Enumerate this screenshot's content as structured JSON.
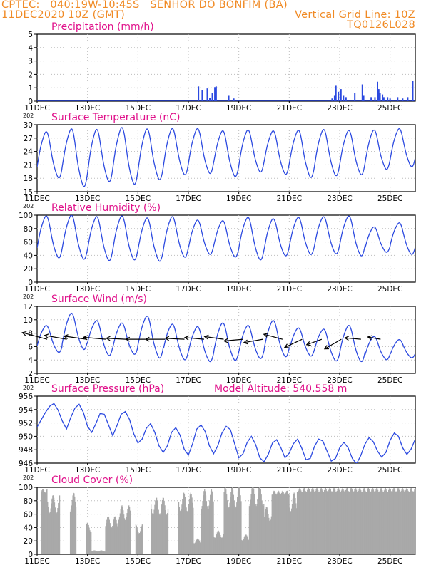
{
  "header": {
    "line1_left": "CPTEC:   040:19W-10:45S   SENHOR DO BONFIM (BA)",
    "line2_left": "11DEC2020 10Z (GMT)",
    "line2_right": "Vertical Grid Line: 10Z",
    "line3_right": "TQ0126L028"
  },
  "colors": {
    "header": "#f08a24",
    "title": "#e0108a",
    "line": "#2b49e0",
    "cloud": "#a9a9a9",
    "wind_vec": "#000000",
    "grid": "#bdbdbd"
  },
  "x_axis": {
    "ticks": [
      "11DEC",
      "13DEC",
      "15DEC",
      "17DEC",
      "19DEC",
      "21DEC",
      "23DEC",
      "25DEC"
    ],
    "stray_label": "202",
    "start": "11DEC2020 10Z",
    "end": "26DEC2020 10Z"
  },
  "chart_data": [
    {
      "type": "bar",
      "title": "Precipitation (mm/h)",
      "ylim": [
        0,
        5
      ],
      "yticks": [
        "0",
        "1",
        "2",
        "3",
        "4",
        "5"
      ],
      "bars": [
        [
          6.4,
          1.1
        ],
        [
          6.55,
          0.8
        ],
        [
          6.75,
          0.95
        ],
        [
          6.85,
          0.25
        ],
        [
          6.95,
          0.6
        ],
        [
          7.05,
          1.05
        ],
        [
          7.1,
          1.1
        ],
        [
          7.6,
          0.4
        ],
        [
          7.8,
          0.2
        ],
        [
          11.7,
          0.2
        ],
        [
          11.8,
          0.4
        ],
        [
          11.85,
          1.2
        ],
        [
          11.95,
          0.7
        ],
        [
          12.05,
          0.9
        ],
        [
          12.15,
          0.4
        ],
        [
          12.25,
          0.3
        ],
        [
          12.6,
          0.6
        ],
        [
          12.9,
          1.25
        ],
        [
          12.95,
          0.4
        ],
        [
          13.25,
          0.3
        ],
        [
          13.4,
          0.3
        ],
        [
          13.5,
          1.45
        ],
        [
          13.55,
          0.9
        ],
        [
          13.6,
          0.6
        ],
        [
          13.7,
          0.5
        ],
        [
          13.75,
          0.3
        ],
        [
          13.9,
          0.3
        ],
        [
          14.0,
          0.2
        ],
        [
          14.3,
          0.3
        ],
        [
          14.5,
          0.2
        ],
        [
          14.7,
          0.3
        ],
        [
          14.9,
          1.5
        ]
      ],
      "baseline": 0.05
    },
    {
      "type": "line",
      "title": "Surface Temperature (nC)",
      "ylim": [
        15,
        30
      ],
      "yticks": [
        "15",
        "18",
        "21",
        "24",
        "27",
        "30"
      ],
      "series": [
        {
          "mins": [
            18.2,
            16.3,
            17.4,
            16.8,
            17.8,
            18.9,
            19.2,
            18.5,
            19.5,
            19.0,
            18.3,
            18.7,
            18.9,
            20.1,
            20.7
          ],
          "maxs": [
            28.3,
            28.9,
            28.8,
            29.2,
            28.9,
            29.0,
            29.0,
            28.5,
            28.7,
            28.5,
            28.6,
            28.8,
            28.6,
            28.7,
            29.0
          ],
          "start": 22.0,
          "end": 24.5
        }
      ]
    },
    {
      "type": "line",
      "title": "Relative Humidity (%)",
      "ylim": [
        0,
        100
      ],
      "yticks": [
        "0",
        "20",
        "40",
        "60",
        "80",
        "100"
      ],
      "series": [
        {
          "mins": [
            37,
            35,
            33,
            34,
            32,
            38,
            42,
            38,
            34,
            40,
            42,
            43,
            40,
            45,
            42
          ],
          "maxs": [
            98,
            99,
            97,
            98,
            95,
            97,
            92,
            91,
            96,
            94,
            96,
            97,
            98,
            82,
            88
          ],
          "start": 63,
          "end": 60
        }
      ]
    },
    {
      "type": "line",
      "title": "Surface Wind (m/s)",
      "ylim": [
        2,
        13
      ],
      "yticks": [
        "2",
        "4",
        "6",
        "8",
        "10",
        "12"
      ],
      "series": [
        {
          "mins": [
            5.5,
            6.0,
            5.0,
            5.2,
            4.6,
            4.3,
            4.0,
            4.2,
            4.5,
            4.8,
            4.9,
            4.1,
            4.0,
            4.3,
            4.6
          ],
          "maxs": [
            9.8,
            11.8,
            10.6,
            10.2,
            11.3,
            10.0,
            9.6,
            10.2,
            9.8,
            10.6,
            9.4,
            9.2,
            9.8,
            8.0,
            7.5
          ],
          "start": 7.5,
          "end": 5.6
        }
      ],
      "vectors": {
        "baseline_y": 7.6,
        "angle_deg": [
          -15,
          -10,
          -8,
          -5,
          -3,
          0,
          0,
          -3,
          -5,
          -8,
          5,
          10,
          -15,
          25,
          20,
          30,
          -5,
          -10
        ],
        "length_ticks": [
          8,
          7,
          7,
          7,
          6,
          6,
          6,
          6,
          6,
          6,
          6,
          6,
          6,
          6,
          5,
          6,
          5,
          4
        ]
      }
    },
    {
      "type": "line",
      "title": "Surface Pressure (hPa)",
      "ylim": [
        946,
        956
      ],
      "yticks": [
        "946",
        "948",
        "950",
        "952",
        "954",
        "956"
      ],
      "annotation": "Model Altitude: 540.558 m",
      "series": [
        {
          "values": [
            951.4,
            952.5,
            953.6,
            954.5,
            954.9,
            953.9,
            952.3,
            951.1,
            952.8,
            954.2,
            954.8,
            953.6,
            951.5,
            950.6,
            951.9,
            953.4,
            953.3,
            951.7,
            950.1,
            951.6,
            953.3,
            953.7,
            952.5,
            950.4,
            949.0,
            949.6,
            951.2,
            951.9,
            950.6,
            948.6,
            947.6,
            948.6,
            950.6,
            951.3,
            950.2,
            948.1,
            947.2,
            948.9,
            951.1,
            951.7,
            950.7,
            948.6,
            947.4,
            948.6,
            950.5,
            951.5,
            951.0,
            948.9,
            946.8,
            947.4,
            949.1,
            950.0,
            948.8,
            946.8,
            946.2,
            947.3,
            949.0,
            949.5,
            948.3,
            946.8,
            947.5,
            948.9,
            949.6,
            948.2,
            946.5,
            946.7,
            948.5,
            949.6,
            949.3,
            947.8,
            946.3,
            946.7,
            948.3,
            949.1,
            948.3,
            946.7,
            945.9,
            947.1,
            948.8,
            949.8,
            949.2,
            947.8,
            946.9,
            947.6,
            949.4,
            950.5,
            950.0,
            948.3,
            947.3,
            948.1,
            949.6
          ]
        }
      ]
    },
    {
      "type": "area",
      "title": "Cloud Cover (%)",
      "ylim": [
        0,
        100
      ],
      "yticks": [
        "0",
        "20",
        "40",
        "60",
        "80",
        "100"
      ],
      "series": [
        {
          "segments": [
            [
              0.0,
              0.15,
              0
            ],
            [
              0.15,
              0.4,
              95
            ],
            [
              0.4,
              0.9,
              75
            ],
            [
              0.9,
              1.3,
              0
            ],
            [
              1.3,
              1.55,
              78
            ],
            [
              1.55,
              1.95,
              0
            ],
            [
              1.95,
              2.15,
              40
            ],
            [
              2.15,
              2.7,
              5
            ],
            [
              2.7,
              3.2,
              48
            ],
            [
              3.2,
              3.7,
              62
            ],
            [
              3.7,
              3.9,
              0
            ],
            [
              3.9,
              4.2,
              38
            ],
            [
              4.2,
              4.5,
              0
            ],
            [
              4.5,
              5.2,
              72
            ],
            [
              5.2,
              5.6,
              0
            ],
            [
              5.6,
              6.2,
              78
            ],
            [
              6.2,
              6.5,
              20
            ],
            [
              6.5,
              7.0,
              82
            ],
            [
              7.0,
              7.4,
              30
            ],
            [
              7.4,
              8.1,
              85
            ],
            [
              8.1,
              8.4,
              25
            ],
            [
              8.4,
              9.0,
              88
            ],
            [
              9.0,
              9.3,
              60
            ],
            [
              9.3,
              10.0,
              92
            ],
            [
              10.0,
              10.3,
              78
            ],
            [
              10.3,
              15.0,
              96
            ]
          ]
        }
      ]
    }
  ]
}
